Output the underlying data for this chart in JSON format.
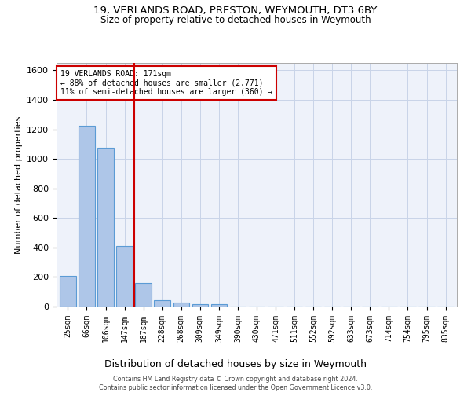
{
  "title": "19, VERLANDS ROAD, PRESTON, WEYMOUTH, DT3 6BY",
  "subtitle": "Size of property relative to detached houses in Weymouth",
  "xlabel": "Distribution of detached houses by size in Weymouth",
  "ylabel": "Number of detached properties",
  "footer_line1": "Contains HM Land Registry data © Crown copyright and database right 2024.",
  "footer_line2": "Contains public sector information licensed under the Open Government Licence v3.0.",
  "categories": [
    "25sqm",
    "66sqm",
    "106sqm",
    "147sqm",
    "187sqm",
    "228sqm",
    "268sqm",
    "309sqm",
    "349sqm",
    "390sqm",
    "430sqm",
    "471sqm",
    "511sqm",
    "552sqm",
    "592sqm",
    "633sqm",
    "673sqm",
    "714sqm",
    "754sqm",
    "795sqm",
    "835sqm"
  ],
  "values": [
    205,
    1225,
    1075,
    410,
    160,
    45,
    27,
    18,
    14,
    0,
    0,
    0,
    0,
    0,
    0,
    0,
    0,
    0,
    0,
    0,
    0
  ],
  "bar_color": "#aec6e8",
  "bar_edge_color": "#5b9bd5",
  "grid_color": "#c8d4e8",
  "background_color": "#eef2fa",
  "property_line_x": 3.5,
  "property_line_color": "#cc0000",
  "annotation_line1": "19 VERLANDS ROAD: 171sqm",
  "annotation_line2": "← 88% of detached houses are smaller (2,771)",
  "annotation_line3": "11% of semi-detached houses are larger (360) →",
  "annotation_box_color": "#cc0000",
  "ylim": [
    0,
    1650
  ],
  "yticks": [
    0,
    200,
    400,
    600,
    800,
    1000,
    1200,
    1400,
    1600
  ],
  "title_fontsize": 9.5,
  "subtitle_fontsize": 8.5,
  "ylabel_fontsize": 8.0,
  "xlabel_fontsize": 9.0,
  "ytick_fontsize": 8.0,
  "xtick_fontsize": 7.0,
  "footer_fontsize": 5.8,
  "annotation_fontsize": 7.0
}
